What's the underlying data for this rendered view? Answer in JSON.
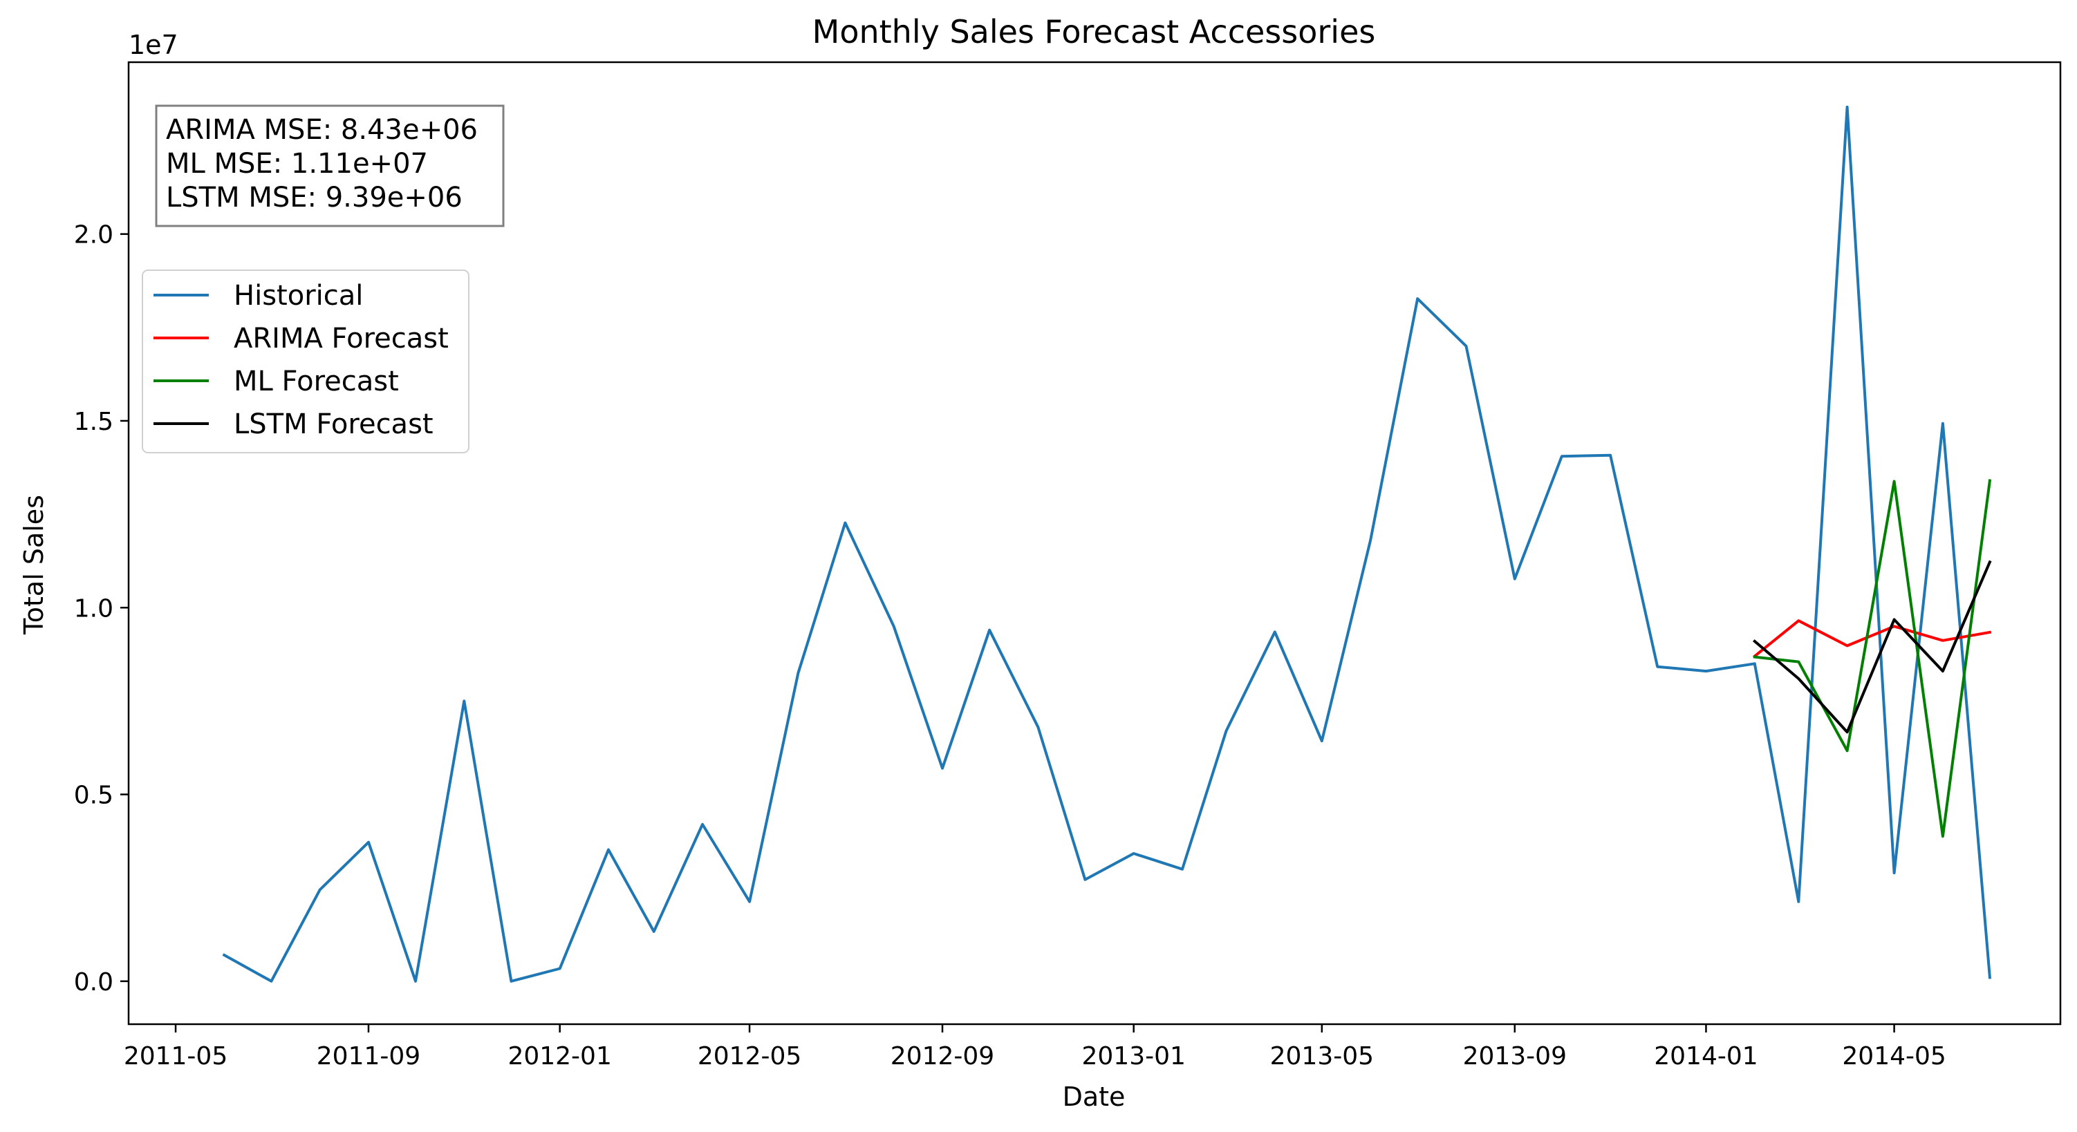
{
  "chart_data": {
    "type": "line",
    "title": "Monthly Sales Forecast Accessories",
    "xlabel": "Date",
    "ylabel": "Total Sales",
    "y_offset_label": "1e7",
    "x_axis_type": "date",
    "xlim": [
      "2011-04-01",
      "2014-08-15"
    ],
    "ylim": [
      -0.115,
      2.46
    ],
    "x_ticks": [
      "2011-05-01",
      "2011-09-01",
      "2012-01-01",
      "2012-05-01",
      "2012-09-01",
      "2013-01-01",
      "2013-05-01",
      "2013-09-01",
      "2014-01-01",
      "2014-05-01"
    ],
    "x_tick_labels": [
      "2011-05",
      "2011-09",
      "2012-01",
      "2012-05",
      "2012-09",
      "2013-01",
      "2013-05",
      "2013-09",
      "2014-01",
      "2014-05"
    ],
    "y_ticks": [
      0.0,
      0.5,
      1.0,
      1.5,
      2.0
    ],
    "y_tick_labels": [
      "0.0",
      "0.5",
      "1.0",
      "1.5",
      "2.0"
    ],
    "grid": false,
    "legend_position": "upper-left",
    "annotation": {
      "lines": [
        "ARIMA MSE: 8.43e+06",
        "ML MSE: 1.11e+07",
        "LSTM MSE: 9.39e+06"
      ],
      "position": "top-left"
    },
    "series": [
      {
        "name": "Historical",
        "color": "#1f77b4",
        "x": [
          "2011-06-01",
          "2011-07-01",
          "2011-08-01",
          "2011-09-01",
          "2011-10-01",
          "2011-11-01",
          "2011-12-01",
          "2012-01-01",
          "2012-02-01",
          "2012-03-01",
          "2012-04-01",
          "2012-05-01",
          "2012-06-01",
          "2012-07-01",
          "2012-08-01",
          "2012-09-01",
          "2012-10-01",
          "2012-11-01",
          "2012-12-01",
          "2013-01-01",
          "2013-02-01",
          "2013-03-01",
          "2013-04-01",
          "2013-05-01",
          "2013-06-01",
          "2013-07-01",
          "2013-08-01",
          "2013-09-01",
          "2013-10-01",
          "2013-11-01",
          "2013-12-01",
          "2014-01-01",
          "2014-02-01",
          "2014-03-01",
          "2014-04-01",
          "2014-05-01",
          "2014-06-01",
          "2014-07-01"
        ],
        "values": [
          0.07,
          0.0,
          0.245,
          0.372,
          0.0,
          0.75,
          0.0,
          0.034,
          0.352,
          0.133,
          0.42,
          0.213,
          0.825,
          1.227,
          0.95,
          0.57,
          0.94,
          0.68,
          0.272,
          0.342,
          0.3,
          0.67,
          0.935,
          0.643,
          1.18,
          1.827,
          1.7,
          1.077,
          1.405,
          1.408,
          0.842,
          0.83,
          0.85,
          0.213,
          2.34,
          0.29,
          1.493,
          0.01
        ]
      },
      {
        "name": "ARIMA Forecast",
        "color": "#ff0000",
        "x": [
          "2014-02-01",
          "2014-03-01",
          "2014-04-01",
          "2014-05-01",
          "2014-06-01",
          "2014-07-01"
        ],
        "values": [
          0.87,
          0.965,
          0.898,
          0.95,
          0.912,
          0.934
        ]
      },
      {
        "name": "ML Forecast",
        "color": "#008000",
        "x": [
          "2014-02-01",
          "2014-03-01",
          "2014-04-01",
          "2014-05-01",
          "2014-06-01",
          "2014-07-01"
        ],
        "values": [
          0.868,
          0.855,
          0.617,
          1.338,
          0.388,
          1.34
        ]
      },
      {
        "name": "LSTM Forecast",
        "color": "#000000",
        "x": [
          "2014-02-01",
          "2014-03-01",
          "2014-04-01",
          "2014-05-01",
          "2014-06-01",
          "2014-07-01"
        ],
        "values": [
          0.91,
          0.81,
          0.667,
          0.968,
          0.83,
          1.122
        ]
      }
    ]
  }
}
